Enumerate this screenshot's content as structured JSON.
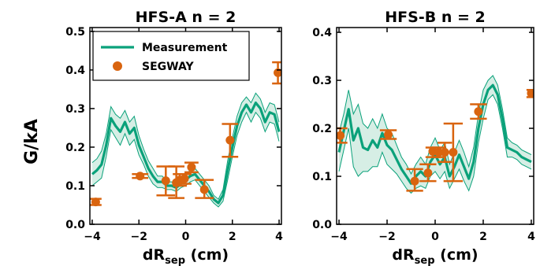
{
  "figure": {
    "ylabel": "G/kA",
    "xlabel_main": "dR",
    "xlabel_sub": "sep",
    "xlabel_tail": " (cm)"
  },
  "legend": {
    "measurement": "Measurement",
    "segway": "SEGWAY"
  },
  "colors": {
    "measurement": "#0aa17a",
    "band": "#d6eee5",
    "segway": "#d9640f",
    "axis": "#000000"
  },
  "chart_data": [
    {
      "type": "line",
      "title": "HFS-A n = 2",
      "xlabel": "dRsep (cm)",
      "ylabel": "G/kA",
      "xlim": [
        -4.1,
        4.1
      ],
      "ylim": [
        0.0,
        0.51
      ],
      "xticks": [
        -4,
        -2,
        0,
        2,
        4
      ],
      "xtick_labels": [
        "−4",
        "−2",
        "0",
        "2",
        "4"
      ],
      "yticks": [
        0.0,
        0.1,
        0.2,
        0.3,
        0.4,
        0.5
      ],
      "ytick_labels": [
        "0.0",
        "0.1",
        "0.2",
        "0.3",
        "0.4",
        "0.5"
      ],
      "legend_position": "top-left",
      "series": [
        {
          "name": "Measurement",
          "kind": "line_with_band",
          "x": [
            -4.0,
            -3.8,
            -3.6,
            -3.4,
            -3.2,
            -3.0,
            -2.8,
            -2.6,
            -2.4,
            -2.2,
            -2.0,
            -1.8,
            -1.6,
            -1.4,
            -1.2,
            -1.0,
            -0.8,
            -0.6,
            -0.4,
            -0.2,
            0.0,
            0.2,
            0.4,
            0.6,
            0.8,
            1.0,
            1.2,
            1.4,
            1.6,
            1.8,
            2.0,
            2.2,
            2.4,
            2.6,
            2.8,
            3.0,
            3.2,
            3.4,
            3.6,
            3.8,
            4.0
          ],
          "y": [
            0.13,
            0.14,
            0.155,
            0.205,
            0.275,
            0.255,
            0.24,
            0.265,
            0.235,
            0.25,
            0.205,
            0.175,
            0.145,
            0.125,
            0.11,
            0.11,
            0.1,
            0.1,
            0.095,
            0.105,
            0.115,
            0.125,
            0.13,
            0.115,
            0.1,
            0.085,
            0.065,
            0.055,
            0.075,
            0.14,
            0.2,
            0.255,
            0.29,
            0.31,
            0.29,
            0.315,
            0.3,
            0.265,
            0.29,
            0.285,
            0.24
          ],
          "low": [
            0.1,
            0.11,
            0.12,
            0.175,
            0.245,
            0.225,
            0.205,
            0.235,
            0.205,
            0.22,
            0.18,
            0.155,
            0.125,
            0.105,
            0.095,
            0.095,
            0.09,
            0.09,
            0.085,
            0.095,
            0.1,
            0.11,
            0.115,
            0.1,
            0.085,
            0.07,
            0.055,
            0.045,
            0.06,
            0.115,
            0.175,
            0.23,
            0.265,
            0.29,
            0.265,
            0.29,
            0.275,
            0.24,
            0.265,
            0.26,
            0.215
          ],
          "high": [
            0.16,
            0.17,
            0.19,
            0.235,
            0.305,
            0.285,
            0.275,
            0.295,
            0.265,
            0.28,
            0.23,
            0.195,
            0.165,
            0.145,
            0.125,
            0.125,
            0.11,
            0.11,
            0.105,
            0.115,
            0.13,
            0.14,
            0.145,
            0.13,
            0.115,
            0.1,
            0.075,
            0.065,
            0.09,
            0.165,
            0.225,
            0.28,
            0.315,
            0.33,
            0.315,
            0.34,
            0.325,
            0.29,
            0.315,
            0.31,
            0.265
          ]
        },
        {
          "name": "SEGWAY",
          "kind": "points_with_errorbars",
          "points": [
            {
              "x": -3.85,
              "y": 0.058,
              "xerr": 0.25,
              "ylo": 0.05,
              "yhi": 0.066
            },
            {
              "x": -1.95,
              "y": 0.125,
              "xerr": 0.35,
              "ylo": 0.12,
              "yhi": 0.13
            },
            {
              "x": -0.85,
              "y": 0.113,
              "xerr": 0.4,
              "ylo": 0.075,
              "yhi": 0.15
            },
            {
              "x": -0.4,
              "y": 0.108,
              "xerr": 0.35,
              "ylo": 0.068,
              "yhi": 0.15
            },
            {
              "x": -0.25,
              "y": 0.115,
              "xerr": 0.3,
              "ylo": 0.1,
              "yhi": 0.13
            },
            {
              "x": -0.05,
              "y": 0.118,
              "xerr": 0.3,
              "ylo": 0.105,
              "yhi": 0.13
            },
            {
              "x": 0.25,
              "y": 0.148,
              "xerr": 0.3,
              "ylo": 0.135,
              "yhi": 0.16
            },
            {
              "x": 0.8,
              "y": 0.09,
              "xerr": 0.4,
              "ylo": 0.068,
              "yhi": 0.115
            },
            {
              "x": 1.9,
              "y": 0.218,
              "xerr": 0.35,
              "ylo": 0.175,
              "yhi": 0.26
            },
            {
              "x": 3.95,
              "y": 0.393,
              "xerr": 0.25,
              "ylo": 0.365,
              "yhi": 0.42
            }
          ]
        }
      ]
    },
    {
      "type": "line",
      "title": "HFS-B n = 2",
      "xlabel": "dRsep (cm)",
      "ylabel": "",
      "xlim": [
        -4.1,
        4.1
      ],
      "ylim": [
        0.0,
        0.41
      ],
      "xticks": [
        -4,
        -2,
        0,
        2,
        4
      ],
      "xtick_labels": [
        "−4",
        "−2",
        "0",
        "2",
        "4"
      ],
      "yticks": [
        0.0,
        0.1,
        0.2,
        0.3,
        0.4
      ],
      "ytick_labels": [
        "0.0",
        "0.1",
        "0.2",
        "0.3",
        "0.4"
      ],
      "series": [
        {
          "name": "Measurement",
          "kind": "line_with_band",
          "x": [
            -4.0,
            -3.8,
            -3.6,
            -3.4,
            -3.2,
            -3.0,
            -2.8,
            -2.6,
            -2.4,
            -2.2,
            -2.0,
            -1.8,
            -1.6,
            -1.4,
            -1.2,
            -1.0,
            -0.8,
            -0.6,
            -0.4,
            -0.2,
            0.0,
            0.2,
            0.4,
            0.6,
            0.8,
            1.0,
            1.2,
            1.4,
            1.6,
            1.8,
            2.0,
            2.2,
            2.4,
            2.6,
            2.8,
            3.0,
            3.2,
            3.4,
            3.6,
            3.8,
            4.0
          ],
          "y": [
            0.15,
            0.195,
            0.24,
            0.175,
            0.2,
            0.16,
            0.155,
            0.175,
            0.16,
            0.19,
            0.165,
            0.155,
            0.135,
            0.115,
            0.1,
            0.085,
            0.1,
            0.11,
            0.1,
            0.13,
            0.145,
            0.125,
            0.14,
            0.1,
            0.12,
            0.145,
            0.12,
            0.095,
            0.13,
            0.2,
            0.25,
            0.28,
            0.29,
            0.27,
            0.22,
            0.16,
            0.155,
            0.15,
            0.14,
            0.135,
            0.13
          ],
          "low": [
            0.11,
            0.155,
            0.2,
            0.12,
            0.1,
            0.11,
            0.11,
            0.12,
            0.12,
            0.15,
            0.125,
            0.115,
            0.105,
            0.09,
            0.075,
            0.065,
            0.075,
            0.08,
            0.075,
            0.1,
            0.11,
            0.095,
            0.11,
            0.075,
            0.095,
            0.115,
            0.09,
            0.07,
            0.1,
            0.17,
            0.22,
            0.26,
            0.27,
            0.25,
            0.2,
            0.14,
            0.14,
            0.135,
            0.125,
            0.12,
            0.115
          ],
          "high": [
            0.19,
            0.23,
            0.28,
            0.23,
            0.25,
            0.21,
            0.2,
            0.22,
            0.2,
            0.23,
            0.2,
            0.19,
            0.165,
            0.14,
            0.125,
            0.105,
            0.125,
            0.14,
            0.125,
            0.16,
            0.18,
            0.155,
            0.17,
            0.125,
            0.15,
            0.175,
            0.15,
            0.12,
            0.16,
            0.23,
            0.28,
            0.3,
            0.31,
            0.29,
            0.24,
            0.18,
            0.17,
            0.165,
            0.155,
            0.15,
            0.145
          ]
        },
        {
          "name": "SEGWAY",
          "kind": "points_with_errorbars",
          "points": [
            {
              "x": -3.95,
              "y": 0.185,
              "xerr": 0.3,
              "ylo": 0.17,
              "yhi": 0.2
            },
            {
              "x": -1.95,
              "y": 0.187,
              "xerr": 0.35,
              "ylo": 0.178,
              "yhi": 0.196
            },
            {
              "x": -0.85,
              "y": 0.09,
              "xerr": 0.35,
              "ylo": 0.07,
              "yhi": 0.115
            },
            {
              "x": -0.3,
              "y": 0.107,
              "xerr": 0.35,
              "ylo": 0.09,
              "yhi": 0.125
            },
            {
              "x": -0.1,
              "y": 0.152,
              "xerr": 0.3,
              "ylo": 0.14,
              "yhi": 0.16
            },
            {
              "x": 0.15,
              "y": 0.15,
              "xerr": 0.3,
              "ylo": 0.14,
              "yhi": 0.16
            },
            {
              "x": 0.4,
              "y": 0.15,
              "xerr": 0.3,
              "ylo": 0.13,
              "yhi": 0.17
            },
            {
              "x": 0.75,
              "y": 0.15,
              "xerr": 0.4,
              "ylo": 0.09,
              "yhi": 0.21
            },
            {
              "x": 1.8,
              "y": 0.235,
              "xerr": 0.35,
              "ylo": 0.22,
              "yhi": 0.25
            },
            {
              "x": 4.0,
              "y": 0.273,
              "xerr": 0.2,
              "ylo": 0.265,
              "yhi": 0.28
            }
          ]
        }
      ]
    }
  ]
}
